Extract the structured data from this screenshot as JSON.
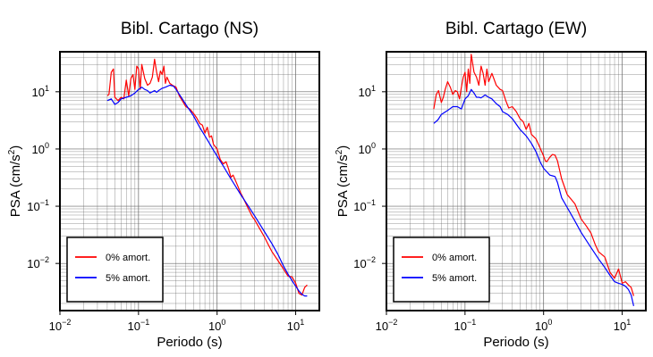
{
  "chart_data": [
    {
      "type": "line",
      "title": "Bibl. Cartago (NS)",
      "xlabel": "Periodo (s)",
      "ylabel": {
        "main": "PSA (cm/s",
        "sup": "2",
        "tail": ")"
      },
      "x_scale": "log",
      "y_scale": "log",
      "xlim": [
        0.01,
        20
      ],
      "ylim": [
        0.0015,
        50
      ],
      "grid": true,
      "x_ticks": [
        {
          "base": "10",
          "exp": "−2"
        },
        {
          "base": "10",
          "exp": "−1"
        },
        {
          "base": "10",
          "exp": "0"
        },
        {
          "base": "10",
          "exp": "1"
        }
      ],
      "y_ticks": [
        {
          "base": "10",
          "exp": "−2"
        },
        {
          "base": "10",
          "exp": "−1"
        },
        {
          "base": "10",
          "exp": "0"
        },
        {
          "base": "10",
          "exp": "1"
        }
      ],
      "legend_position": "bottom-left",
      "series": [
        {
          "name": "0% amort.",
          "color": "#ff0000",
          "x": [
            0.04,
            0.042,
            0.045,
            0.048,
            0.05,
            0.055,
            0.06,
            0.065,
            0.07,
            0.075,
            0.08,
            0.085,
            0.09,
            0.095,
            0.1,
            0.105,
            0.11,
            0.12,
            0.13,
            0.14,
            0.15,
            0.16,
            0.17,
            0.18,
            0.19,
            0.2,
            0.21,
            0.22,
            0.23,
            0.25,
            0.27,
            0.3,
            0.33,
            0.36,
            0.4,
            0.45,
            0.5,
            0.55,
            0.6,
            0.65,
            0.7,
            0.75,
            0.8,
            0.85,
            0.9,
            1.0,
            1.1,
            1.2,
            1.3,
            1.4,
            1.5,
            1.6,
            1.8,
            2.0,
            2.2,
            2.5,
            2.8,
            3.0,
            3.5,
            4.0,
            4.5,
            5.0,
            6.0,
            7.0,
            8.0,
            9.0,
            10.0,
            11.0,
            12.0,
            13.0,
            14.0
          ],
          "y": [
            8.5,
            9,
            22,
            25,
            8,
            7,
            8,
            7.5,
            16,
            8.5,
            17,
            20,
            11,
            28,
            25,
            11,
            30,
            17,
            13,
            14,
            18,
            37,
            22,
            15,
            23,
            20,
            28,
            14,
            18,
            14,
            13,
            12,
            8.5,
            7,
            5.5,
            5,
            4.2,
            3.5,
            2.8,
            2.6,
            1.9,
            2.4,
            1.6,
            1.7,
            1.2,
            1.0,
            0.65,
            0.55,
            0.6,
            0.45,
            0.32,
            0.35,
            0.24,
            0.17,
            0.13,
            0.09,
            0.066,
            0.058,
            0.04,
            0.029,
            0.021,
            0.016,
            0.011,
            0.008,
            0.006,
            0.0058,
            0.0045,
            0.003,
            0.0028,
            0.0038,
            0.0042
          ]
        },
        {
          "name": "5% amort.",
          "color": "#0000ff",
          "x": [
            0.04,
            0.045,
            0.05,
            0.055,
            0.06,
            0.07,
            0.08,
            0.09,
            0.1,
            0.11,
            0.12,
            0.13,
            0.14,
            0.15,
            0.16,
            0.17,
            0.18,
            0.2,
            0.22,
            0.25,
            0.28,
            0.3,
            0.35,
            0.4,
            0.5,
            0.6,
            0.7,
            0.8,
            0.9,
            1.0,
            1.2,
            1.5,
            2.0,
            2.5,
            3.0,
            4.0,
            5.0,
            6.0,
            7.0,
            8.0,
            9.0,
            10.0,
            11.0,
            12.0,
            13.0,
            14.0
          ],
          "y": [
            7,
            7.5,
            6,
            6.5,
            7.5,
            8,
            8.5,
            9.5,
            11,
            12,
            11,
            10.5,
            9.5,
            10,
            10.5,
            9.8,
            10.5,
            11.5,
            12,
            13,
            12.5,
            11,
            8,
            6,
            3.8,
            2.4,
            1.7,
            1.25,
            0.95,
            0.75,
            0.5,
            0.3,
            0.16,
            0.1,
            0.068,
            0.036,
            0.022,
            0.014,
            0.009,
            0.0065,
            0.005,
            0.004,
            0.0033,
            0.0029,
            0.0027,
            0.0027
          ]
        }
      ]
    },
    {
      "type": "line",
      "title": "Bibl. Cartago (EW)",
      "xlabel": "Periodo (s)",
      "ylabel": {
        "main": "PSA (cm/s",
        "sup": "2",
        "tail": ")"
      },
      "x_scale": "log",
      "y_scale": "log",
      "xlim": [
        0.01,
        20
      ],
      "ylim": [
        0.0015,
        50
      ],
      "grid": true,
      "x_ticks": [
        {
          "base": "10",
          "exp": "−2"
        },
        {
          "base": "10",
          "exp": "−1"
        },
        {
          "base": "10",
          "exp": "0"
        },
        {
          "base": "10",
          "exp": "1"
        }
      ],
      "y_ticks": [
        {
          "base": "10",
          "exp": "−2"
        },
        {
          "base": "10",
          "exp": "−1"
        },
        {
          "base": "10",
          "exp": "0"
        },
        {
          "base": "10",
          "exp": "1"
        }
      ],
      "legend_position": "bottom-left",
      "series": [
        {
          "name": "0% amort.",
          "color": "#ff0000",
          "x": [
            0.04,
            0.043,
            0.046,
            0.05,
            0.053,
            0.056,
            0.06,
            0.065,
            0.07,
            0.075,
            0.08,
            0.085,
            0.09,
            0.095,
            0.1,
            0.105,
            0.11,
            0.115,
            0.12,
            0.13,
            0.14,
            0.15,
            0.16,
            0.17,
            0.18,
            0.19,
            0.2,
            0.22,
            0.25,
            0.28,
            0.3,
            0.33,
            0.36,
            0.4,
            0.45,
            0.5,
            0.55,
            0.6,
            0.65,
            0.7,
            0.8,
            0.9,
            1.0,
            1.05,
            1.1,
            1.2,
            1.3,
            1.4,
            1.5,
            1.7,
            2.0,
            2.5,
            3.0,
            3.5,
            4.0,
            4.5,
            5.0,
            6.0,
            7.0,
            8.0,
            9.0,
            10.0,
            11.0,
            12.0,
            13.0,
            14.0
          ],
          "y": [
            5,
            9,
            10.5,
            6.5,
            8,
            11,
            15,
            12,
            9,
            10.5,
            10,
            7.5,
            12,
            18,
            22,
            10,
            25,
            14,
            45,
            22,
            18,
            13,
            28,
            21,
            13,
            25,
            15,
            21,
            13,
            11,
            10.5,
            7,
            5.2,
            5.5,
            4.5,
            3.4,
            3.0,
            2.2,
            2.8,
            1.8,
            1.5,
            1.05,
            0.75,
            0.62,
            0.6,
            0.72,
            0.8,
            0.78,
            0.62,
            0.3,
            0.16,
            0.11,
            0.06,
            0.045,
            0.034,
            0.022,
            0.016,
            0.013,
            0.007,
            0.0055,
            0.008,
            0.0045,
            0.0048,
            0.0042,
            0.0038,
            0.0027
          ]
        },
        {
          "name": "5% amort.",
          "color": "#0000ff",
          "x": [
            0.04,
            0.045,
            0.05,
            0.06,
            0.07,
            0.08,
            0.09,
            0.1,
            0.11,
            0.12,
            0.13,
            0.14,
            0.15,
            0.16,
            0.18,
            0.2,
            0.22,
            0.25,
            0.28,
            0.3,
            0.35,
            0.4,
            0.5,
            0.6,
            0.7,
            0.8,
            0.9,
            1.0,
            1.1,
            1.2,
            1.3,
            1.4,
            1.5,
            1.7,
            2.0,
            2.5,
            3.0,
            4.0,
            5.0,
            6.0,
            7.0,
            8.0,
            9.0,
            10.0,
            11.0,
            12.0,
            13.0,
            14.0
          ],
          "y": [
            2.8,
            3.2,
            4,
            4.7,
            5.5,
            5.5,
            5,
            7.5,
            8.5,
            11,
            9.5,
            8,
            8,
            7.8,
            8.8,
            8,
            7.5,
            6.2,
            5.5,
            4.5,
            4,
            3.4,
            2.2,
            1.7,
            1.25,
            0.9,
            0.6,
            0.46,
            0.4,
            0.35,
            0.34,
            0.33,
            0.26,
            0.14,
            0.095,
            0.055,
            0.035,
            0.019,
            0.012,
            0.0085,
            0.0062,
            0.0048,
            0.0045,
            0.0043,
            0.004,
            0.0035,
            0.0028,
            0.0018
          ]
        }
      ]
    }
  ]
}
